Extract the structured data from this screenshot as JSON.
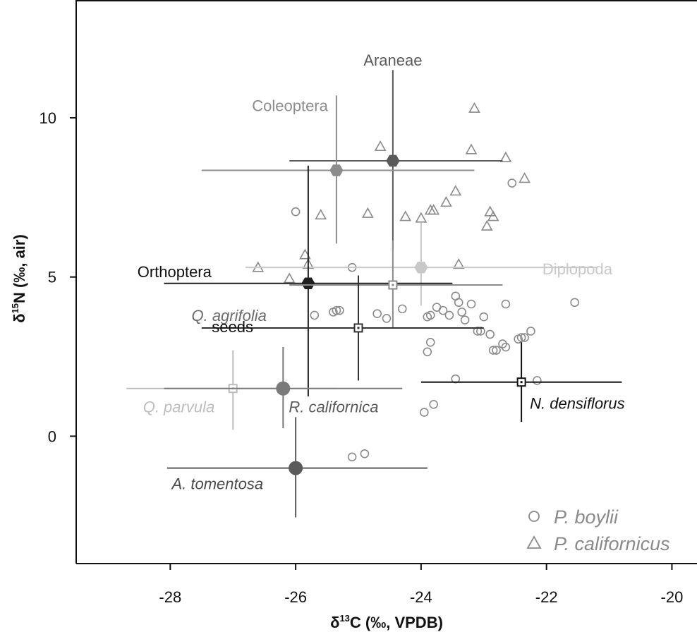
{
  "chart_data": {
    "type": "scatter",
    "title": "",
    "xlabel": {
      "prefix": "δ",
      "sup": "13",
      "rest": "C (‰, VPDB)"
    },
    "ylabel": {
      "prefix": "δ",
      "sup": "15",
      "rest": "N (‰, air)"
    },
    "xlim": [
      -29.5,
      -19.6
    ],
    "ylim": [
      -4.0,
      13.7
    ],
    "x_ticks": [
      -28,
      -26,
      -24,
      -22,
      -20
    ],
    "x_tick_labels": [
      "-28",
      "-26",
      "-24",
      "-22",
      "-20"
    ],
    "y_ticks": [
      0,
      5,
      10
    ],
    "y_tick_labels": [
      "0",
      "5",
      "10"
    ],
    "grid": false,
    "legend_position": "bottom-right",
    "series": [
      {
        "name": "P. boylii",
        "marker": "circle",
        "color": "#8a8a8a",
        "points": [
          [
            -26.0,
            7.05
          ],
          [
            -25.1,
            5.3
          ],
          [
            -25.7,
            3.8
          ],
          [
            -25.4,
            3.9
          ],
          [
            -25.35,
            3.95
          ],
          [
            -25.3,
            3.95
          ],
          [
            -24.7,
            3.85
          ],
          [
            -24.55,
            3.7
          ],
          [
            -24.3,
            4.0
          ],
          [
            -23.9,
            3.75
          ],
          [
            -23.85,
            3.8
          ],
          [
            -23.75,
            4.05
          ],
          [
            -23.65,
            3.95
          ],
          [
            -23.55,
            3.8
          ],
          [
            -23.45,
            4.4
          ],
          [
            -23.4,
            4.2
          ],
          [
            -23.35,
            3.9
          ],
          [
            -23.3,
            3.65
          ],
          [
            -23.2,
            4.15
          ],
          [
            -23.1,
            3.3
          ],
          [
            -23.05,
            3.3
          ],
          [
            -23.0,
            3.75
          ],
          [
            -22.9,
            3.2
          ],
          [
            -22.85,
            2.7
          ],
          [
            -22.8,
            2.7
          ],
          [
            -22.7,
            2.9
          ],
          [
            -22.65,
            2.8
          ],
          [
            -22.65,
            4.15
          ],
          [
            -22.45,
            3.05
          ],
          [
            -22.4,
            3.1
          ],
          [
            -22.35,
            3.1
          ],
          [
            -22.25,
            3.3
          ],
          [
            -22.55,
            7.95
          ],
          [
            -21.55,
            4.2
          ],
          [
            -23.85,
            2.95
          ],
          [
            -23.9,
            2.65
          ],
          [
            -23.45,
            1.8
          ],
          [
            -23.8,
            1.0
          ],
          [
            -23.95,
            0.75
          ],
          [
            -22.15,
            1.75
          ],
          [
            -24.9,
            -0.55
          ],
          [
            -25.1,
            -0.65
          ]
        ]
      },
      {
        "name": "P. californicus",
        "marker": "triangle",
        "color": "#8a8a8a",
        "points": [
          [
            -26.6,
            5.3
          ],
          [
            -26.1,
            4.95
          ],
          [
            -25.85,
            5.7
          ],
          [
            -25.8,
            5.4
          ],
          [
            -25.6,
            6.95
          ],
          [
            -24.85,
            7.0
          ],
          [
            -24.65,
            9.1
          ],
          [
            -24.25,
            6.9
          ],
          [
            -24.0,
            6.85
          ],
          [
            -23.85,
            7.1
          ],
          [
            -23.8,
            7.1
          ],
          [
            -23.6,
            7.35
          ],
          [
            -23.45,
            7.7
          ],
          [
            -23.4,
            5.4
          ],
          [
            -23.2,
            9.0
          ],
          [
            -23.15,
            10.3
          ],
          [
            -22.95,
            6.6
          ],
          [
            -22.9,
            7.05
          ],
          [
            -22.85,
            6.9
          ],
          [
            -22.65,
            8.75
          ],
          [
            -22.35,
            8.1
          ]
        ]
      }
    ],
    "sources": [
      {
        "name": "Araneae",
        "x": -24.45,
        "y": 8.65,
        "x_range": [
          -26.1,
          -22.7
        ],
        "y_range": [
          5.85,
          11.5
        ],
        "marker": "hexagon",
        "color": "#5a5a5a",
        "label_color": "#5a5a5a",
        "label_style": "normal"
      },
      {
        "name": "Coleoptera",
        "x": -25.35,
        "y": 8.35,
        "x_range": [
          -27.5,
          -23.15
        ],
        "y_range": [
          6.05,
          10.7
        ],
        "marker": "hexagon",
        "color": "#8c8c8c",
        "label_color": "#8c8c8c",
        "label_style": "normal"
      },
      {
        "name": "Diplopoda",
        "x": -24.0,
        "y": 5.3,
        "x_range": [
          -26.8,
          -21.2
        ],
        "y_range": [
          4.1,
          6.7
        ],
        "marker": "hexagon",
        "color": "#c8c8c8",
        "label_color": "#c8c8c8",
        "label_style": "normal"
      },
      {
        "name": "Orthoptera",
        "x": -25.8,
        "y": 4.8,
        "x_range": [
          -28.1,
          -23.5
        ],
        "y_range": [
          1.25,
          8.5
        ],
        "marker": "hexagon",
        "color": "#1e1e1e",
        "label_color": "#111111",
        "label_style": "normal"
      },
      {
        "name": "Q. agrifolia",
        "x": -24.45,
        "y": 4.75,
        "x_range": [
          -26.1,
          -22.7
        ],
        "y_range": [
          3.4,
          6.15
        ],
        "marker": "square",
        "color": "#8a8a8a",
        "label_color": "#6a6a6a",
        "label_style": "italic"
      },
      {
        "name": "seeds",
        "x": -25.0,
        "y": 3.4,
        "x_range": [
          -27.5,
          -23.0
        ],
        "y_range": [
          1.75,
          5.05
        ],
        "marker": "square",
        "color": "#333333",
        "label_color": "#111111",
        "label_style": "normal"
      },
      {
        "name": "Q. parvula",
        "x": -27.0,
        "y": 1.5,
        "x_range": [
          -28.7,
          -25.35
        ],
        "y_range": [
          0.2,
          2.7
        ],
        "marker": "square",
        "color": "#bdbdbd",
        "label_color": "#bdbdbd",
        "label_style": "italic"
      },
      {
        "name": "R. californica",
        "x": -26.2,
        "y": 1.5,
        "x_range": [
          -28.1,
          -24.3
        ],
        "y_range": [
          0.25,
          2.8
        ],
        "marker": "circle",
        "color": "#7a7a7a",
        "label_color": "#5a5a5a",
        "label_style": "italic"
      },
      {
        "name": "N. densiflorus",
        "x": -22.4,
        "y": 1.7,
        "x_range": [
          -24.0,
          -20.8
        ],
        "y_range": [
          0.45,
          2.95
        ],
        "marker": "square",
        "color": "#111111",
        "label_color": "#111111",
        "label_style": "italic"
      },
      {
        "name": "A. tomentosa",
        "x": -26.0,
        "y": -1.0,
        "x_range": [
          -28.05,
          -23.9
        ],
        "y_range": [
          -2.55,
          0.6
        ],
        "marker": "circle",
        "color": "#5a5a5a",
        "label_color": "#4a4a4a",
        "label_style": "italic"
      }
    ]
  }
}
